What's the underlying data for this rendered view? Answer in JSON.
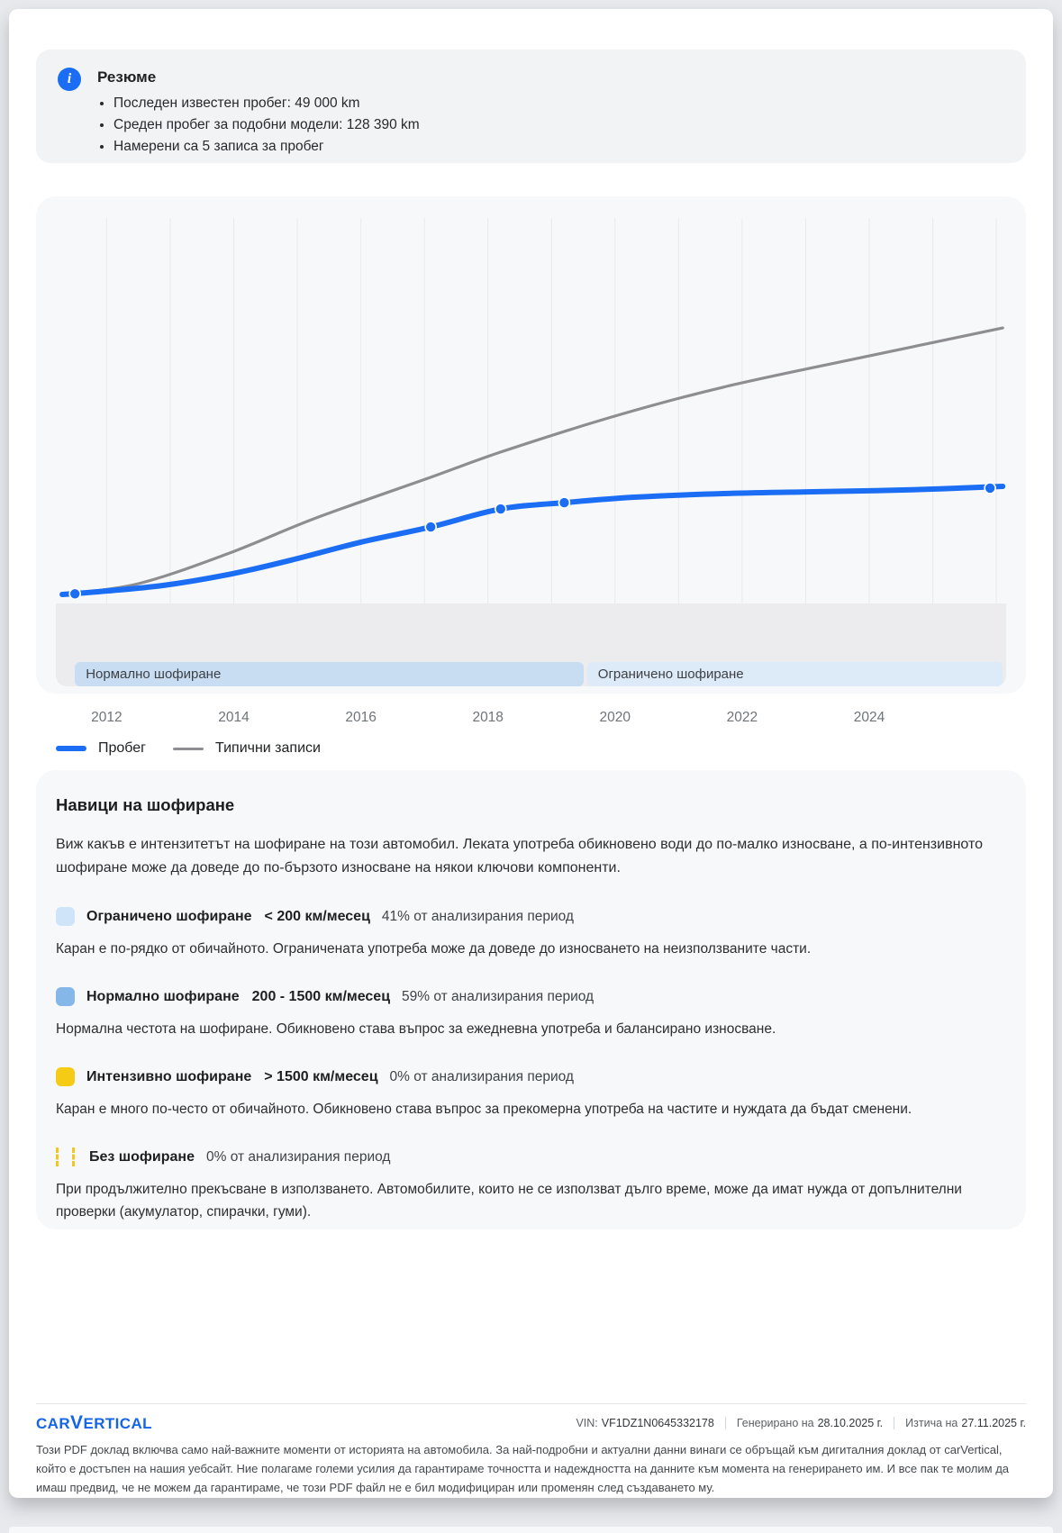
{
  "summary": {
    "title": "Резюме",
    "items": [
      "Последен известен пробег: 49 000 km",
      "Среден пробег за подобни модели: 128 390 km",
      "Намерени са 5 записа за пробег"
    ]
  },
  "chart_data": {
    "type": "line",
    "title": "",
    "xlabel": "",
    "ylabel": "",
    "x_ticks": [
      2012,
      2014,
      2016,
      2018,
      2020,
      2022,
      2024
    ],
    "x_range": [
      2011.2,
      2026.2
    ],
    "y_range_km": [
      0,
      180000
    ],
    "grid": "vertical-yearly",
    "legend_position": "bottom-left",
    "series": [
      {
        "name": "Пробег",
        "color": "#1b6ef3",
        "width": 6,
        "points": [
          [
            2011.3,
            0
          ],
          [
            2012,
            1600
          ],
          [
            2012.9,
            4200
          ],
          [
            2013.9,
            9100
          ],
          [
            2014.9,
            15800
          ],
          [
            2016,
            24100
          ],
          [
            2017.1,
            31100
          ],
          [
            2018.2,
            39400
          ],
          [
            2019.2,
            42300
          ],
          [
            2020.3,
            44800
          ],
          [
            2021.7,
            46500
          ],
          [
            2023.1,
            47300
          ],
          [
            2024.6,
            48200
          ],
          [
            2026.1,
            49800
          ]
        ],
        "markers": [
          [
            2011.5,
            300
          ],
          [
            2017.1,
            31100
          ],
          [
            2018.2,
            39400
          ],
          [
            2019.2,
            42300
          ],
          [
            2025.9,
            49000
          ]
        ]
      },
      {
        "name": "Типични записи",
        "color": "#8e8e92",
        "width": 3.2,
        "points": [
          [
            2011.3,
            0
          ],
          [
            2012.5,
            5000
          ],
          [
            2013.9,
            18700
          ],
          [
            2015.3,
            35300
          ],
          [
            2017.1,
            54000
          ],
          [
            2018.2,
            65600
          ],
          [
            2020,
            82200
          ],
          [
            2021.7,
            95500
          ],
          [
            2023.8,
            108700
          ],
          [
            2026.1,
            122800
          ]
        ],
        "markers": []
      }
    ],
    "bands": [
      {
        "label": "Нормално шофиране",
        "from": 2011.5,
        "to": 2019.5,
        "color": "#c8ddf2"
      },
      {
        "label": "Ограничено шофиране",
        "from": 2019.56,
        "to": 2026.1,
        "color": "#ddeaf7"
      }
    ]
  },
  "habits": {
    "title": "Навици на шофиране",
    "intro": "Виж какъв е интензитетът на шофиране на този автомобил. Леката употреба обикновено води до по-малко износване, а по-интензивното шофиране може да доведе до по-бързото износване на някои ключови компоненти.",
    "items": [
      {
        "icon": "limited-driving-swatch",
        "color": "#cfe4f9",
        "title": "Ограничено шофиране",
        "range": "< 200 км/месец",
        "percent": "41% от анализирания период",
        "desc": "Каран е по-рядко от обичайното. Ограничената употреба може да доведе до износването на неизползваните части."
      },
      {
        "icon": "normal-driving-swatch",
        "color": "#85b7e9",
        "title": "Нормално шофиране",
        "range": "200 - 1500 км/месец",
        "percent": "59% от анализирания период",
        "desc": "Нормална честота на шофиране. Обикновено става въпрос за ежедневна употреба и балансирано износване."
      },
      {
        "icon": "intense-driving-swatch",
        "color": "#f6cb15",
        "title": "Интензивно шофиране",
        "range": "> 1500 км/месец",
        "percent": "0% от анализирания период",
        "desc": "Каран е много по-често от обичайното. Обикновено става въпрос за прекомерна употреба на частите и нуждата да бъдат сменени."
      },
      {
        "icon": "no-driving-swatch",
        "color": "#f3c71d",
        "title": "Без шофиране",
        "range": "",
        "percent": "0% от анализирания период",
        "desc": "При продължително прекъсване в използването. Автомобилите, които не се използват дълго време, може да имат нужда от допълнителни проверки (акумулатор, спирачки, гуми)."
      }
    ]
  },
  "footer": {
    "logo": "CARVERTICAL",
    "vin_label": "VIN:",
    "vin": "VF1DZ1N0645332178",
    "generated_label": "Генерирано на",
    "generated": "28.10.2025 г.",
    "expires_label": "Изтича на",
    "expires": "27.11.2025 г.",
    "disclaimer": "Този PDF доклад включва само най-важните моменти от историята на автомобила. За най-подробни и актуални данни винаги се обръщай към дигиталния доклад от carVertical, който е достъпен на нашия уебсайт. Ние полагаме големи усилия да гарантираме точността и надеждността на данните към момента на генерирането им. И все пак те молим да имаш предвид, че не можем да гарантираме, че този PDF файл не е бил модифициран или променян след създаването му."
  }
}
